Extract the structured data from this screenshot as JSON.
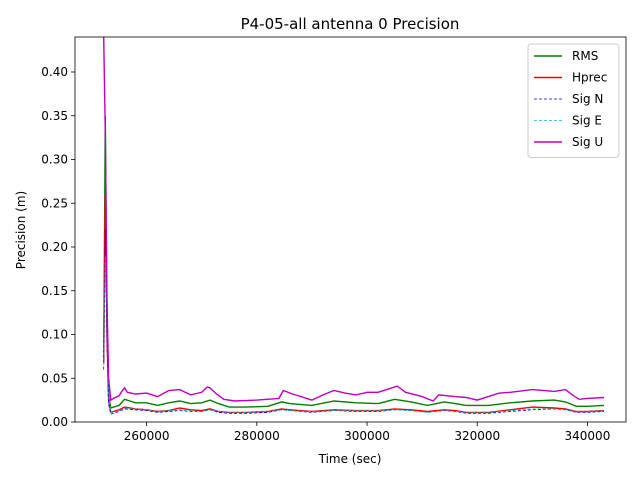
{
  "chart_data": {
    "type": "line",
    "title": "P4-05-all antenna 0 Precision",
    "xlabel": "Time (sec)",
    "ylabel": "Precision (m)",
    "xlim": [
      247000,
      347000
    ],
    "ylim": [
      0,
      0.44
    ],
    "xticks": [
      260000,
      280000,
      300000,
      320000,
      340000
    ],
    "xtick_labels": [
      "260000",
      "280000",
      "300000",
      "320000",
      "340000"
    ],
    "yticks": [
      0.0,
      0.05,
      0.1,
      0.15,
      0.2,
      0.25,
      0.3,
      0.35,
      0.4
    ],
    "ytick_labels": [
      "0.00",
      "0.05",
      "0.10",
      "0.15",
      "0.20",
      "0.25",
      "0.30",
      "0.35",
      "0.40"
    ],
    "grid": false,
    "legend_position": "top-right",
    "series": [
      {
        "name": "RMS",
        "color": "#008000",
        "style": "solid",
        "x": [
          252200,
          252500,
          252800,
          253100,
          253500,
          254000,
          255000,
          256000,
          258000,
          260000,
          262000,
          264000,
          266000,
          268000,
          270000,
          271500,
          273000,
          275000,
          278000,
          282000,
          284500,
          286000,
          290000,
          294000,
          298000,
          302000,
          305000,
          308000,
          311000,
          314000,
          316000,
          318000,
          322000,
          326000,
          330000,
          334000,
          336000,
          338000,
          340000,
          343000
        ],
        "values": [
          0.07,
          0.35,
          0.11,
          0.03,
          0.016,
          0.017,
          0.019,
          0.026,
          0.022,
          0.022,
          0.019,
          0.022,
          0.024,
          0.021,
          0.022,
          0.025,
          0.021,
          0.017,
          0.017,
          0.018,
          0.023,
          0.021,
          0.019,
          0.024,
          0.022,
          0.021,
          0.026,
          0.023,
          0.019,
          0.023,
          0.021,
          0.019,
          0.019,
          0.022,
          0.024,
          0.025,
          0.023,
          0.018,
          0.018,
          0.019
        ]
      },
      {
        "name": "Hprec",
        "color": "#ff0000",
        "style": "solid",
        "x": [
          252200,
          252500,
          252800,
          253100,
          253500,
          254000,
          255000,
          256000,
          258000,
          260000,
          262000,
          264000,
          266000,
          268000,
          270000,
          271500,
          273000,
          275000,
          278000,
          282000,
          284500,
          286000,
          290000,
          294000,
          298000,
          302000,
          305000,
          308000,
          311000,
          314000,
          316000,
          318000,
          322000,
          326000,
          330000,
          334000,
          336000,
          338000,
          340000,
          343000
        ],
        "values": [
          0.068,
          0.26,
          0.1,
          0.025,
          0.011,
          0.012,
          0.014,
          0.017,
          0.015,
          0.014,
          0.012,
          0.013,
          0.016,
          0.014,
          0.013,
          0.015,
          0.012,
          0.011,
          0.011,
          0.012,
          0.015,
          0.014,
          0.012,
          0.014,
          0.013,
          0.013,
          0.015,
          0.014,
          0.012,
          0.014,
          0.013,
          0.011,
          0.011,
          0.014,
          0.017,
          0.016,
          0.015,
          0.012,
          0.012,
          0.013
        ]
      },
      {
        "name": "Sig N",
        "color": "#0000ff",
        "style": "dashed",
        "x": [
          252200,
          252500,
          252800,
          253100,
          253500,
          254000,
          255000,
          256000,
          258000,
          260000,
          262000,
          264000,
          266000,
          268000,
          270000,
          271500,
          273000,
          275000,
          278000,
          282000,
          284500,
          286000,
          290000,
          294000,
          298000,
          302000,
          305000,
          308000,
          311000,
          314000,
          316000,
          318000,
          322000,
          326000,
          330000,
          334000,
          336000,
          338000,
          340000,
          343000
        ],
        "values": [
          0.06,
          0.22,
          0.09,
          0.02,
          0.009,
          0.01,
          0.012,
          0.015,
          0.014,
          0.013,
          0.011,
          0.012,
          0.013,
          0.012,
          0.012,
          0.014,
          0.011,
          0.01,
          0.01,
          0.011,
          0.014,
          0.013,
          0.011,
          0.013,
          0.012,
          0.012,
          0.014,
          0.013,
          0.011,
          0.013,
          0.012,
          0.01,
          0.01,
          0.012,
          0.014,
          0.015,
          0.014,
          0.011,
          0.011,
          0.012
        ]
      },
      {
        "name": "Sig E",
        "color": "#00bfbf",
        "style": "dashed",
        "x": [
          252200,
          252500,
          252800,
          253100,
          253500,
          254000,
          255000,
          256000,
          258000,
          260000,
          262000,
          264000,
          266000,
          268000,
          270000,
          271500,
          273000,
          275000,
          278000,
          282000,
          284500,
          286000,
          290000,
          294000,
          298000,
          302000,
          305000,
          308000,
          311000,
          314000,
          316000,
          318000,
          322000,
          326000,
          330000,
          334000,
          336000,
          338000,
          340000,
          343000
        ],
        "values": [
          0.065,
          0.19,
          0.12,
          0.03,
          0.011,
          0.011,
          0.013,
          0.016,
          0.015,
          0.014,
          0.012,
          0.013,
          0.014,
          0.013,
          0.012,
          0.014,
          0.012,
          0.011,
          0.011,
          0.012,
          0.014,
          0.013,
          0.012,
          0.013,
          0.013,
          0.013,
          0.014,
          0.013,
          0.011,
          0.013,
          0.012,
          0.011,
          0.011,
          0.013,
          0.015,
          0.015,
          0.014,
          0.012,
          0.012,
          0.013
        ]
      },
      {
        "name": "Sig U",
        "color": "#bf00bf",
        "style": "solid",
        "x": [
          252200,
          252500,
          252800,
          253100,
          253500,
          254000,
          255000,
          255500,
          256000,
          256500,
          258000,
          260000,
          262000,
          264000,
          266000,
          268000,
          270000,
          271000,
          271500,
          272500,
          274000,
          276000,
          280000,
          284000,
          284800,
          286500,
          290000,
          292000,
          294000,
          296000,
          298000,
          300000,
          302000,
          304000,
          305500,
          307000,
          310000,
          312000,
          313000,
          316000,
          318000,
          320000,
          322000,
          324000,
          326000,
          330000,
          334000,
          336000,
          337500,
          338500,
          340000,
          343000
        ],
        "values": [
          0.44,
          0.33,
          0.14,
          0.05,
          0.025,
          0.027,
          0.03,
          0.035,
          0.039,
          0.034,
          0.032,
          0.033,
          0.029,
          0.036,
          0.037,
          0.031,
          0.034,
          0.04,
          0.039,
          0.033,
          0.026,
          0.024,
          0.025,
          0.027,
          0.036,
          0.032,
          0.025,
          0.031,
          0.036,
          0.033,
          0.031,
          0.034,
          0.034,
          0.038,
          0.041,
          0.034,
          0.029,
          0.024,
          0.031,
          0.029,
          0.028,
          0.025,
          0.029,
          0.033,
          0.034,
          0.037,
          0.035,
          0.037,
          0.03,
          0.026,
          0.027,
          0.028
        ]
      }
    ]
  }
}
